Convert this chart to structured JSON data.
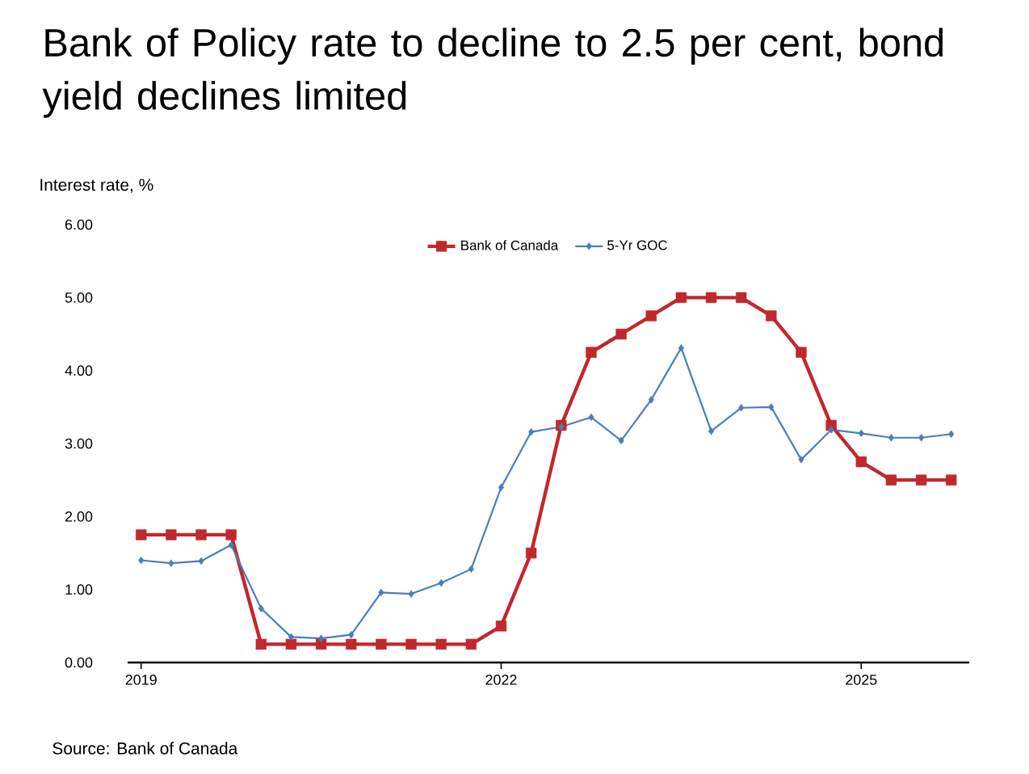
{
  "chart_data": {
    "type": "line",
    "title": "Bank of Policy rate to decline to 2.5 per cent, bond yield declines limited",
    "ylabel": "Interest rate, %",
    "categories": [
      "2019",
      null,
      null,
      null,
      null,
      null,
      null,
      null,
      null,
      null,
      null,
      null,
      "2022",
      null,
      null,
      null,
      null,
      null,
      null,
      null,
      null,
      null,
      null,
      null,
      "2025",
      null,
      null,
      null
    ],
    "series": [
      {
        "name": "Bank of Canada",
        "color": "#c0282d",
        "marker": "square",
        "values": [
          1.75,
          1.75,
          1.75,
          1.75,
          0.25,
          0.25,
          0.25,
          0.25,
          0.25,
          0.25,
          0.25,
          0.25,
          0.5,
          1.5,
          3.25,
          4.25,
          4.5,
          4.75,
          5,
          5,
          5,
          4.75,
          4.25,
          3.25,
          2.75,
          2.5,
          2.5,
          2.5
        ]
      },
      {
        "name": "5-Yr GOC",
        "color": "#4a7ebb",
        "marker": "diamond",
        "values": [
          1.4,
          1.36,
          1.39,
          1.61,
          0.74,
          0.35,
          0.33,
          0.38,
          0.96,
          0.94,
          1.09,
          1.28,
          2.4,
          3.16,
          3.23,
          3.36,
          3.04,
          3.6,
          4.31,
          3.17,
          3.49,
          3.5,
          2.78,
          3.19,
          3.14,
          3.08,
          3.08,
          3.13
        ]
      }
    ],
    "ylim": [
      0,
      6
    ],
    "yticks": [
      {
        "value": 0,
        "label": "0.00"
      },
      {
        "value": 1,
        "label": "1.00"
      },
      {
        "value": 2,
        "label": "2.00"
      },
      {
        "value": 3,
        "label": "3.00"
      },
      {
        "value": 4,
        "label": "4.00"
      },
      {
        "value": 5,
        "label": "5.00"
      },
      {
        "value": 6,
        "label": "6.00"
      }
    ],
    "legend": "top",
    "annotations": [
      "Source: Bank of Canada"
    ]
  }
}
